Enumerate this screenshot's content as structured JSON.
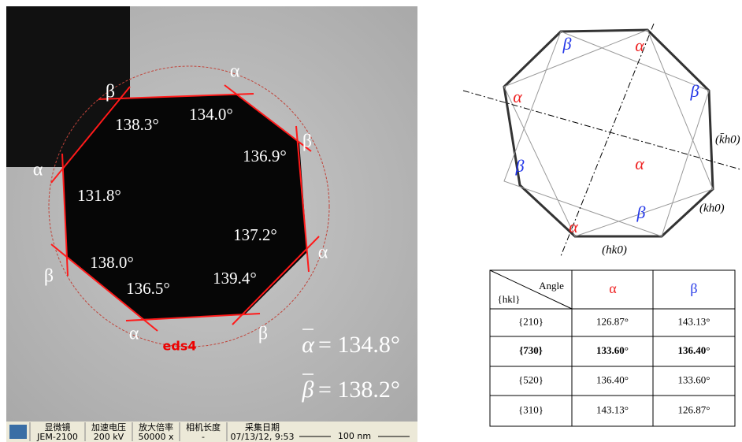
{
  "tem": {
    "angles": [
      "138.3°",
      "134.0°",
      "136.9°",
      "131.8°",
      "138.0°",
      "137.2°",
      "136.5°",
      "139.4°"
    ],
    "corner_labels": [
      "β",
      "α",
      "β",
      "α",
      "α",
      "β",
      "α",
      "β"
    ],
    "eds_label": "eds4",
    "averages": [
      {
        "symbol": "α",
        "text": "= 134.8°"
      },
      {
        "symbol": "β",
        "text": "= 138.2°"
      }
    ],
    "status_bar": {
      "headers": [
        "显微镜",
        "加速电压",
        "放大倍率",
        "相机长度",
        "采集日期"
      ],
      "values": [
        "JEM-2100",
        "200 kV",
        "50000 x",
        "-",
        "07/13/12, 9:53"
      ],
      "scale": "100 nm"
    }
  },
  "diagram": {
    "corner_labels": [
      "β",
      "α",
      "α",
      "β",
      "β",
      "α",
      "β",
      "α"
    ],
    "facet_labels": [
      "(k̄h0)",
      "(kh0)",
      "(hk0)"
    ]
  },
  "table": {
    "header": {
      "angle": "Angle",
      "hkl": "{hkl}",
      "alpha": "α",
      "beta": "β"
    },
    "rows": [
      [
        "{210}",
        "126.87°",
        "143.13°"
      ],
      [
        "{730}",
        "133.60°",
        "136.40°"
      ],
      [
        "{520}",
        "136.40°",
        "133.60°"
      ],
      [
        "{310}",
        "143.13°",
        "126.87°"
      ]
    ]
  }
}
